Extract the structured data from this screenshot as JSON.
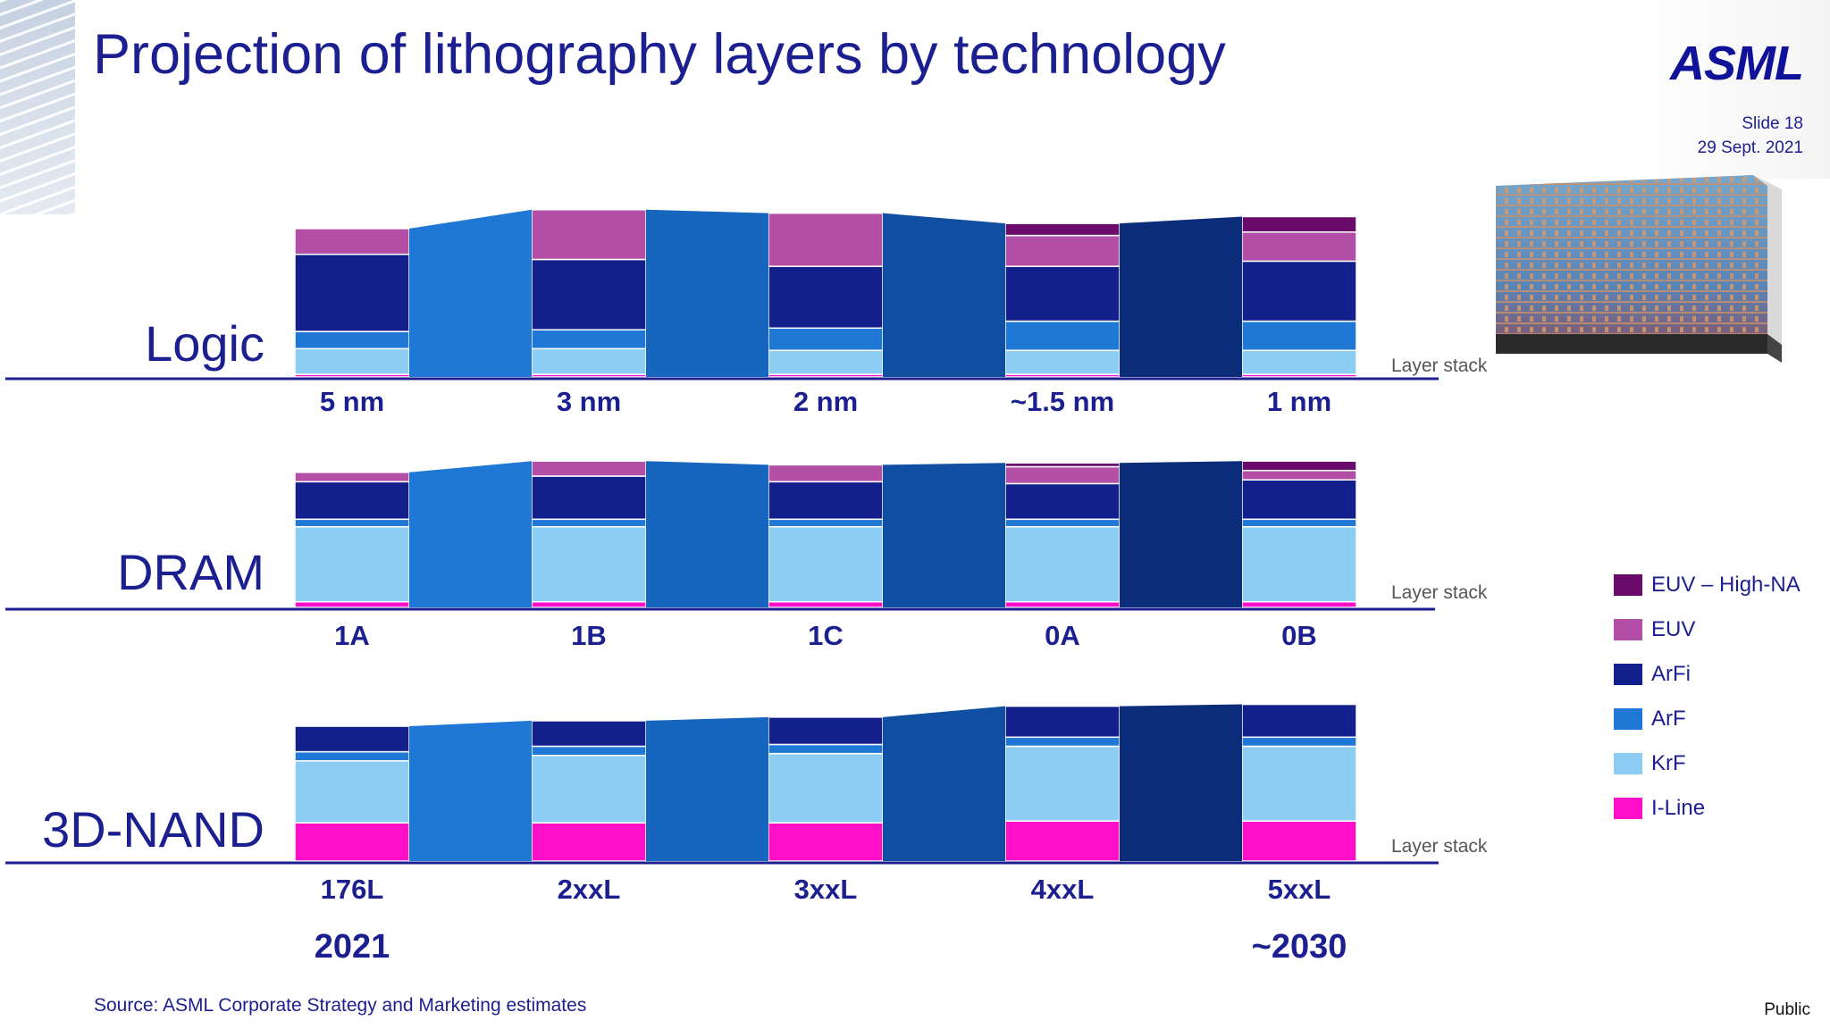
{
  "slide": {
    "title": "Projection of lithography layers by technology",
    "logo": "ASML",
    "slide_number": "Slide 18",
    "date": "29 Sept. 2021",
    "source": "Source: ASML Corporate Strategy and Marketing estimates",
    "classification": "Public"
  },
  "legend": [
    {
      "label": "EUV – High-NA",
      "color": "#6a0a6a"
    },
    {
      "label": "EUV",
      "color": "#b44fa8"
    },
    {
      "label": "ArFi",
      "color": "#13208c"
    },
    {
      "label": "ArF",
      "color": "#1f78d6"
    },
    {
      "label": "KrF",
      "color": "#8dcdf3"
    },
    {
      "label": "I-Line",
      "color": "#ff10c8"
    }
  ],
  "chart_data": {
    "type": "bar",
    "stacked": true,
    "layer_order": [
      "I-Line",
      "KrF",
      "ArF",
      "ArFi",
      "EUV",
      "EUV – High-NA"
    ],
    "colors": {
      "I-Line": "#ff10c8",
      "KrF": "#8dcdf3",
      "ArF": "#1f78d6",
      "ArFi": "#13208c",
      "EUV": "#b44fa8",
      "EUV – High-NA": "#6a0a6a"
    },
    "connector_colors": [
      "#1f78d6",
      "#1666c0",
      "#0f4ea0",
      "#0b2c78"
    ],
    "stack_label": "Layer stack",
    "years": {
      "start": "2021",
      "end": "~2030"
    },
    "groups": [
      {
        "name": "Logic",
        "categories": [
          "5 nm",
          "3 nm",
          "2 nm",
          "~1.5 nm",
          "1 nm"
        ],
        "series": [
          {
            "name": "I-Line",
            "values": [
              3,
              3,
              3,
              3,
              3
            ]
          },
          {
            "name": "KrF",
            "values": [
              30,
              30,
              28,
              28,
              28
            ]
          },
          {
            "name": "ArF",
            "values": [
              20,
              22,
              26,
              34,
              34
            ]
          },
          {
            "name": "ArFi",
            "values": [
              90,
              82,
              72,
              64,
              70
            ]
          },
          {
            "name": "EUV",
            "values": [
              30,
              58,
              62,
              36,
              34
            ]
          },
          {
            "name": "EUV – High-NA",
            "values": [
              0,
              0,
              0,
              14,
              18
            ]
          }
        ]
      },
      {
        "name": "DRAM",
        "categories": [
          "1A",
          "1B",
          "1C",
          "0A",
          "0B"
        ],
        "series": [
          {
            "name": "I-Line",
            "values": [
              6,
              6,
              6,
              6,
              6
            ]
          },
          {
            "name": "KrF",
            "values": [
              80,
              80,
              80,
              80,
              80
            ]
          },
          {
            "name": "ArF",
            "values": [
              8,
              8,
              8,
              8,
              8
            ]
          },
          {
            "name": "ArFi",
            "values": [
              40,
              46,
              40,
              38,
              42
            ]
          },
          {
            "name": "EUV",
            "values": [
              10,
              16,
              18,
              18,
              10
            ]
          },
          {
            "name": "EUV – High-NA",
            "values": [
              0,
              0,
              0,
              4,
              10
            ]
          }
        ]
      },
      {
        "name": "3D-NAND",
        "categories": [
          "176L",
          "2xxL",
          "3xxL",
          "4xxL",
          "5xxL"
        ],
        "series": [
          {
            "name": "I-Line",
            "values": [
              42,
              42,
              42,
              44,
              44
            ]
          },
          {
            "name": "KrF",
            "values": [
              68,
              74,
              76,
              82,
              82
            ]
          },
          {
            "name": "ArF",
            "values": [
              10,
              10,
              10,
              10,
              10
            ]
          },
          {
            "name": "ArFi",
            "values": [
              28,
              28,
              30,
              34,
              36
            ]
          },
          {
            "name": "EUV",
            "values": [
              0,
              0,
              0,
              0,
              0
            ]
          },
          {
            "name": "EUV – High-NA",
            "values": [
              0,
              0,
              0,
              0,
              0
            ]
          }
        ]
      }
    ]
  }
}
